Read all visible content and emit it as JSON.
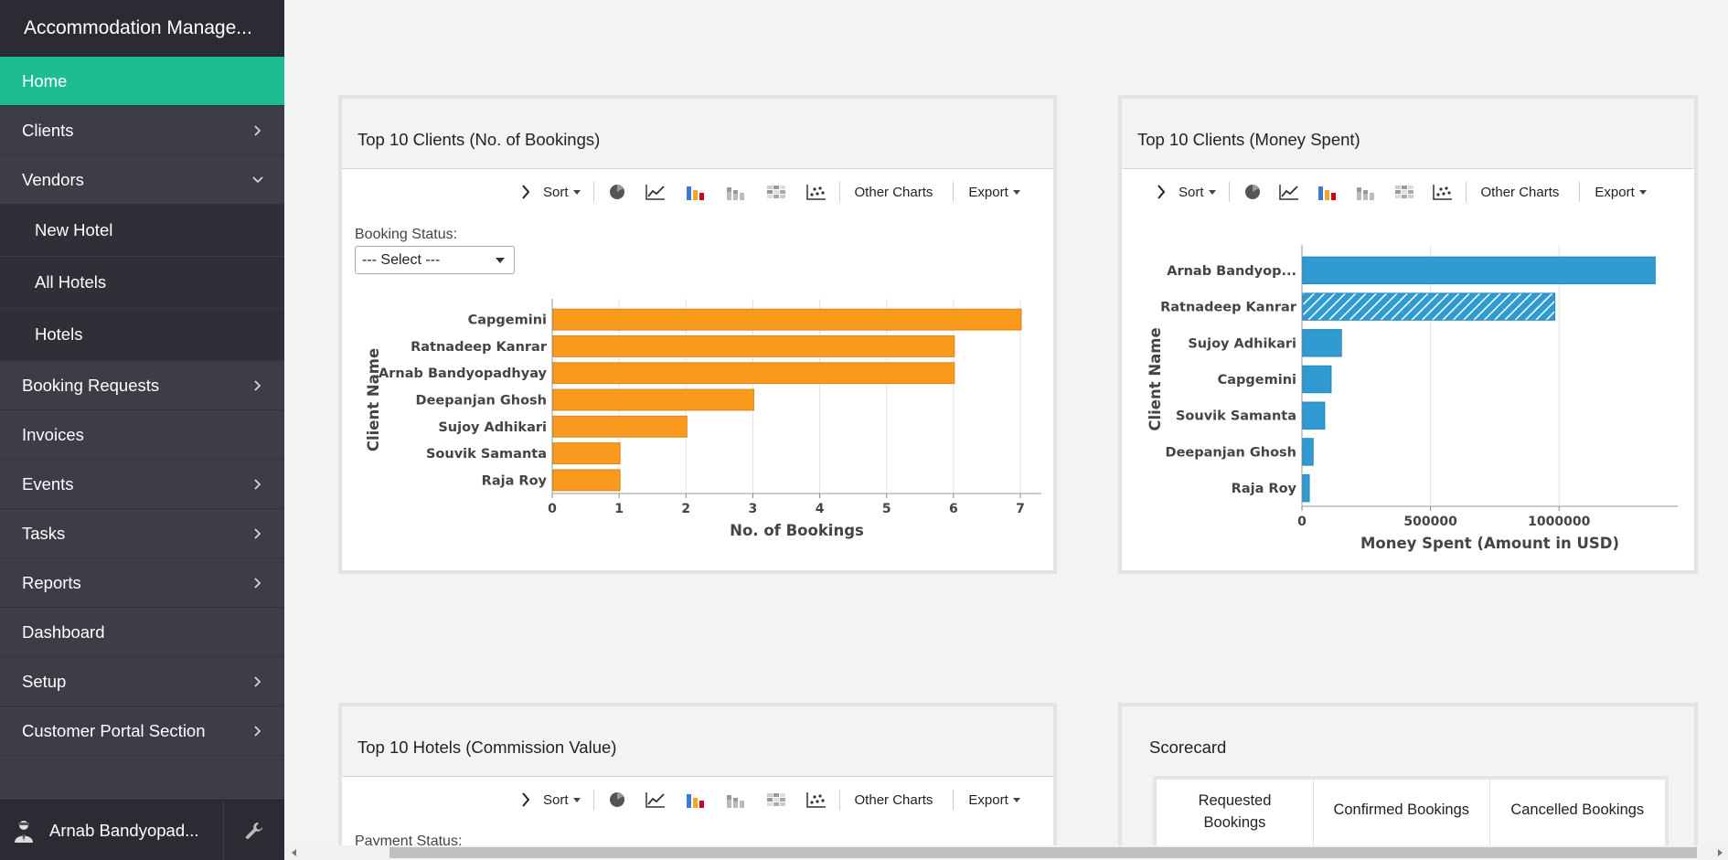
{
  "app": {
    "title": "Accommodation Manage..."
  },
  "sidebar": {
    "items": [
      {
        "label": "Home",
        "active": true,
        "chevron": "none"
      },
      {
        "label": "Clients",
        "chevron": "right"
      },
      {
        "label": "Vendors",
        "chevron": "down"
      },
      {
        "label": "New Hotel",
        "sub": true
      },
      {
        "label": "All Hotels",
        "sub": true
      },
      {
        "label": "Hotels",
        "sub": true
      },
      {
        "label": "Booking Requests",
        "chevron": "right"
      },
      {
        "label": "Invoices",
        "chevron": "none"
      },
      {
        "label": "Events",
        "chevron": "right"
      },
      {
        "label": "Tasks",
        "chevron": "right"
      },
      {
        "label": "Reports",
        "chevron": "right"
      },
      {
        "label": "Dashboard",
        "chevron": "none"
      },
      {
        "label": "Setup",
        "chevron": "right"
      },
      {
        "label": "Customer Portal Section",
        "chevron": "right"
      }
    ],
    "user_name": "Arnab Bandyopad...",
    "accent": "#1ebc92"
  },
  "toolbar": {
    "sort": "Sort",
    "other_charts": "Other Charts",
    "export": "Export"
  },
  "panels": {
    "bookings": {
      "title": "Top 10 Clients (No. of Bookings)",
      "filter_label": "Booking Status:",
      "select_value": "--- Select ---"
    },
    "money": {
      "title": "Top 10 Clients (Money Spent)"
    },
    "hotels": {
      "title": "Top 10 Hotels (Commission Value)",
      "filter_label": "Payment Status:"
    },
    "scorecard": {
      "title": "Scorecard",
      "columns": [
        "Requested Bookings",
        "Confirmed Bookings",
        "Cancelled Bookings"
      ]
    }
  },
  "chart_data": [
    {
      "type": "bar",
      "orientation": "horizontal",
      "categories": [
        "Capgemini",
        "Ratnadeep Kanrar",
        "Arnab Bandyopadhyay",
        "Deepanjan Ghosh",
        "Sujoy Adhikari",
        "Souvik Samanta",
        "Raja Roy"
      ],
      "values": [
        7,
        6,
        6,
        3,
        2,
        1,
        1
      ],
      "xlabel": "No. of Bookings",
      "ylabel": "Client Name",
      "xlim": [
        0,
        7
      ],
      "ticks": [
        0,
        1,
        2,
        3,
        4,
        5,
        6,
        7
      ],
      "tick_labels": [
        "0",
        "1",
        "2",
        "3",
        "4",
        "5",
        "6",
        "7"
      ],
      "grid": true,
      "color": "#f99a1c"
    },
    {
      "type": "bar",
      "orientation": "horizontal",
      "categories": [
        "Arnab Bandyop...",
        "Ratnadeep Kanrar",
        "Sujoy Adhikari",
        "Capgemini",
        "Souvik Samanta",
        "Deepanjan Ghosh",
        "Raja Roy"
      ],
      "values": [
        1370000,
        980000,
        150000,
        110000,
        85000,
        40000,
        25000
      ],
      "highlighted": "Ratnadeep Kanrar",
      "xlabel": "Money Spent (Amount in USD)",
      "ylabel": "Client Name",
      "xlim": [
        0,
        1440000
      ],
      "ticks": [
        0,
        500000,
        1000000
      ],
      "tick_labels": [
        "0",
        "500000",
        "1000000"
      ],
      "grid": true,
      "color": "#2f9bd1"
    }
  ]
}
